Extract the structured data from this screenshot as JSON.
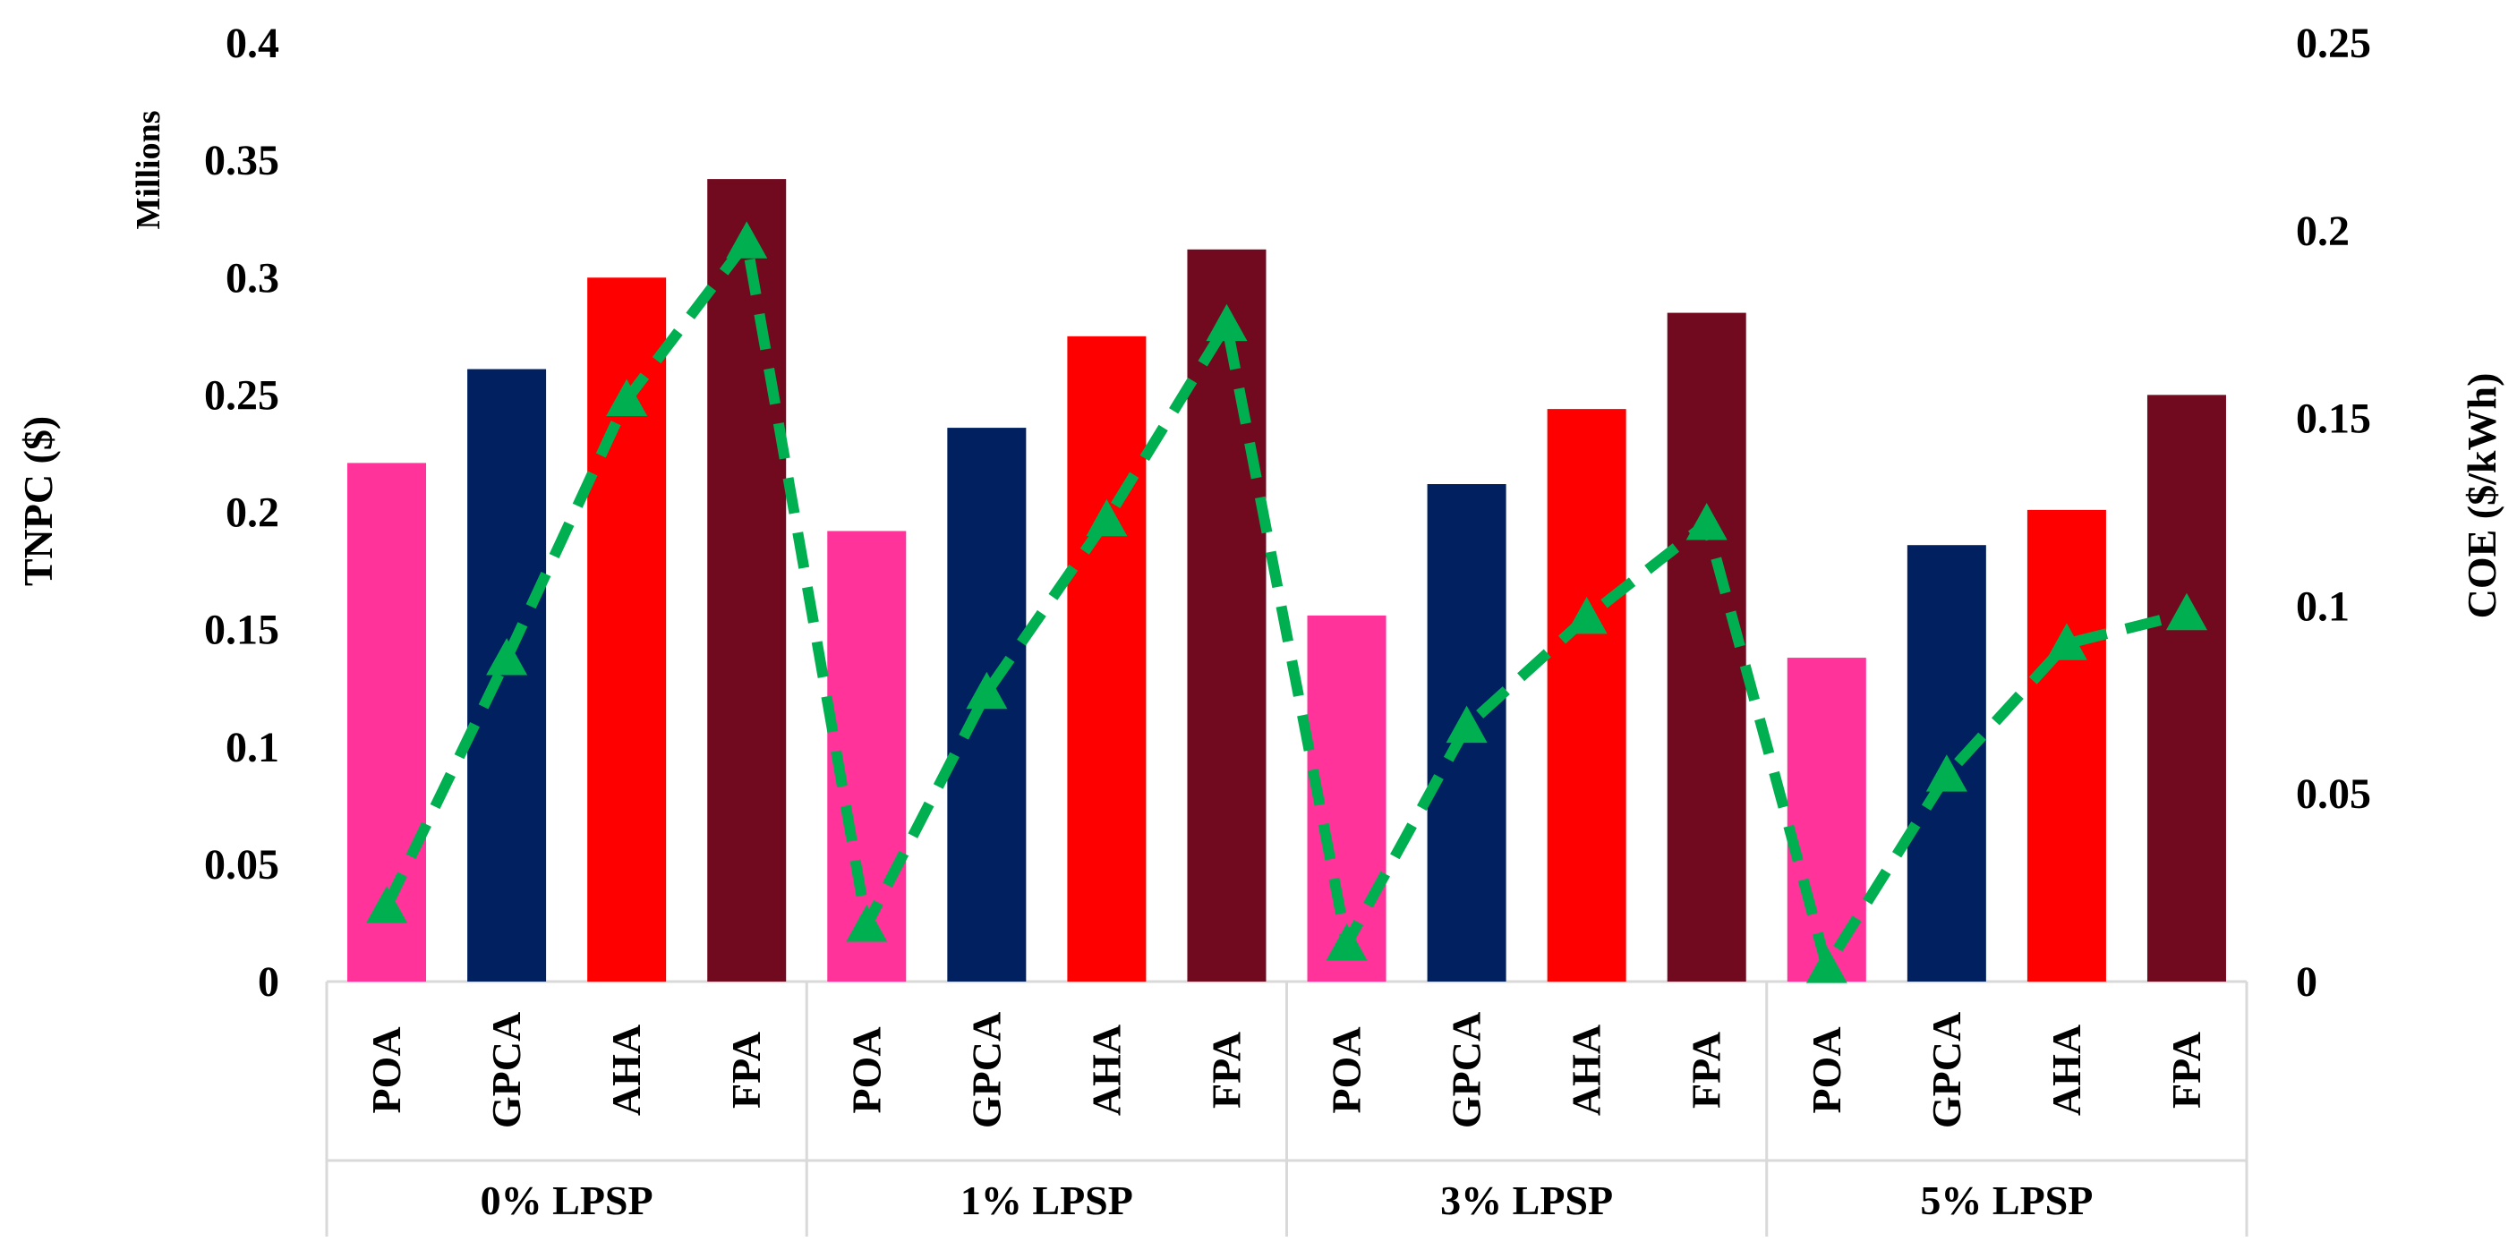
{
  "chart_data": {
    "type": "bar",
    "groups": [
      "0% LPSP",
      "1% LPSP",
      "3% LPSP",
      "5% LPSP"
    ],
    "categories": [
      "POA",
      "GPCA",
      "AHA",
      "FPA"
    ],
    "series": [
      {
        "name": "TNPC ($)",
        "type": "bar",
        "axis": "left",
        "values": [
          [
            0.221,
            0.261,
            0.3,
            0.342
          ],
          [
            0.192,
            0.236,
            0.275,
            0.312
          ],
          [
            0.156,
            0.212,
            0.244,
            0.285
          ],
          [
            0.138,
            0.186,
            0.201,
            0.25
          ]
        ]
      },
      {
        "name": "COE ($/kWh)",
        "type": "line",
        "axis": "right",
        "style": "dashed",
        "marker": "triangle",
        "values": [
          [
            0.02,
            0.086,
            0.155,
            0.197
          ],
          [
            0.015,
            0.077,
            0.123,
            0.175
          ],
          [
            0.01,
            0.068,
            0.097,
            0.122
          ],
          [
            0.004,
            0.055,
            0.09,
            0.098
          ]
        ]
      }
    ],
    "bar_colors": {
      "POA": "#ff3399",
      "GPCA": "#002060",
      "AHA": "#ff0000",
      "FPA": "#720a1f"
    },
    "line_color": "#00b050",
    "y_left": {
      "label": "TNPC ($)",
      "unit_label": "Millions",
      "min": 0,
      "max": 0.4,
      "ticks": [
        "0",
        "0.05",
        "0.1",
        "0.15",
        "0.2",
        "0.25",
        "0.3",
        "0.35",
        "0.4"
      ]
    },
    "y_right": {
      "label": "COE ($/kWh)",
      "min": 0,
      "max": 0.25,
      "ticks": [
        "0",
        "0.05",
        "0.1",
        "0.15",
        "0.2",
        "0.25"
      ]
    },
    "grid": false,
    "legend": "none"
  }
}
